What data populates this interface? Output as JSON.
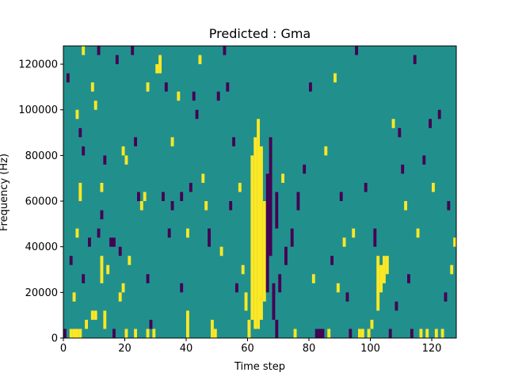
{
  "chart_data": {
    "type": "heatmap",
    "title": "Predicted : Gma",
    "xlabel": "Time step",
    "ylabel": "Frequency (Hz)",
    "xlim": [
      0,
      128
    ],
    "ylim": [
      0,
      128000
    ],
    "xticks": [
      0,
      20,
      40,
      60,
      80,
      100,
      120
    ],
    "xtick_labels": [
      "0",
      "20",
      "40",
      "60",
      "80",
      "100",
      "120"
    ],
    "yticks": [
      0,
      20000,
      40000,
      60000,
      80000,
      100000,
      120000
    ],
    "ytick_labels": [
      "0",
      "20000",
      "40000",
      "60000",
      "80000",
      "100000",
      "120000"
    ],
    "grid": false,
    "levels": {
      "background": 0,
      "low": -1,
      "high": 1
    },
    "colors": {
      "background": "#21908d",
      "low": "#440154",
      "high": "#fde725"
    },
    "cells": [
      {
        "x": 0,
        "y0": 0,
        "y1": 4000,
        "v": -1
      },
      {
        "x": 1,
        "y0": 112000,
        "y1": 116000,
        "v": -1
      },
      {
        "x": 2,
        "y0": 0,
        "y1": 4000,
        "v": 1
      },
      {
        "x": 3,
        "y0": 0,
        "y1": 4000,
        "v": 1
      },
      {
        "x": 4,
        "y0": 0,
        "y1": 4000,
        "v": 1
      },
      {
        "x": 5,
        "y0": 0,
        "y1": 4000,
        "v": 1
      },
      {
        "x": 2,
        "y0": 32000,
        "y1": 36000,
        "v": -1
      },
      {
        "x": 3,
        "y0": 16000,
        "y1": 20000,
        "v": 1
      },
      {
        "x": 4,
        "y0": 44000,
        "y1": 48000,
        "v": 1
      },
      {
        "x": 4,
        "y0": 96000,
        "y1": 100000,
        "v": 1
      },
      {
        "x": 5,
        "y0": 60000,
        "y1": 68000,
        "v": 1
      },
      {
        "x": 5,
        "y0": 88000,
        "y1": 92000,
        "v": -1
      },
      {
        "x": 6,
        "y0": 24000,
        "y1": 28000,
        "v": -1
      },
      {
        "x": 6,
        "y0": 80000,
        "y1": 84000,
        "v": -1
      },
      {
        "x": 6,
        "y0": 124000,
        "y1": 128000,
        "v": 1
      },
      {
        "x": 7,
        "y0": 4000,
        "y1": 8000,
        "v": 1
      },
      {
        "x": 8,
        "y0": 40000,
        "y1": 44000,
        "v": -1
      },
      {
        "x": 9,
        "y0": 108000,
        "y1": 112000,
        "v": 1
      },
      {
        "x": 9,
        "y0": 8000,
        "y1": 12000,
        "v": 1
      },
      {
        "x": 10,
        "y0": 8000,
        "y1": 12000,
        "v": 1
      },
      {
        "x": 10,
        "y0": 100000,
        "y1": 104000,
        "v": 1
      },
      {
        "x": 11,
        "y0": 124000,
        "y1": 128000,
        "v": -1
      },
      {
        "x": 11,
        "y0": 44000,
        "y1": 48000,
        "v": -1
      },
      {
        "x": 12,
        "y0": 24000,
        "y1": 36000,
        "v": 1
      },
      {
        "x": 12,
        "y0": 52000,
        "y1": 56000,
        "v": -1
      },
      {
        "x": 12,
        "y0": 64000,
        "y1": 68000,
        "v": 1
      },
      {
        "x": 13,
        "y0": 4000,
        "y1": 12000,
        "v": 1
      },
      {
        "x": 13,
        "y0": 76000,
        "y1": 80000,
        "v": -1
      },
      {
        "x": 14,
        "y0": 28000,
        "y1": 32000,
        "v": 1
      },
      {
        "x": 15,
        "y0": 40000,
        "y1": 44000,
        "v": -1
      },
      {
        "x": 16,
        "y0": 40000,
        "y1": 44000,
        "v": -1
      },
      {
        "x": 16,
        "y0": 0,
        "y1": 4000,
        "v": -1
      },
      {
        "x": 17,
        "y0": 120000,
        "y1": 124000,
        "v": -1
      },
      {
        "x": 18,
        "y0": 16000,
        "y1": 20000,
        "v": 1
      },
      {
        "x": 18,
        "y0": 36000,
        "y1": 40000,
        "v": -1
      },
      {
        "x": 19,
        "y0": 80000,
        "y1": 84000,
        "v": 1
      },
      {
        "x": 19,
        "y0": 20000,
        "y1": 24000,
        "v": 1
      },
      {
        "x": 20,
        "y0": 76000,
        "y1": 80000,
        "v": 1
      },
      {
        "x": 20,
        "y0": 0,
        "y1": 4000,
        "v": 1
      },
      {
        "x": 21,
        "y0": 32000,
        "y1": 36000,
        "v": 1
      },
      {
        "x": 22,
        "y0": 124000,
        "y1": 128000,
        "v": -1
      },
      {
        "x": 23,
        "y0": 84000,
        "y1": 88000,
        "v": -1
      },
      {
        "x": 23,
        "y0": 0,
        "y1": 4000,
        "v": 1
      },
      {
        "x": 24,
        "y0": 60000,
        "y1": 64000,
        "v": -1
      },
      {
        "x": 25,
        "y0": 56000,
        "y1": 60000,
        "v": 1
      },
      {
        "x": 26,
        "y0": 60000,
        "y1": 64000,
        "v": 1
      },
      {
        "x": 27,
        "y0": 24000,
        "y1": 28000,
        "v": -1
      },
      {
        "x": 27,
        "y0": 108000,
        "y1": 112000,
        "v": 1
      },
      {
        "x": 27,
        "y0": 0,
        "y1": 4000,
        "v": 1
      },
      {
        "x": 28,
        "y0": 4000,
        "y1": 8000,
        "v": -1
      },
      {
        "x": 29,
        "y0": 0,
        "y1": 4000,
        "v": 1
      },
      {
        "x": 30,
        "y0": 116000,
        "y1": 120000,
        "v": 1
      },
      {
        "x": 31,
        "y0": 116000,
        "y1": 124000,
        "v": 1
      },
      {
        "x": 32,
        "y0": 60000,
        "y1": 64000,
        "v": -1
      },
      {
        "x": 33,
        "y0": 108000,
        "y1": 112000,
        "v": -1
      },
      {
        "x": 34,
        "y0": 44000,
        "y1": 48000,
        "v": -1
      },
      {
        "x": 35,
        "y0": 84000,
        "y1": 88000,
        "v": 1
      },
      {
        "x": 35,
        "y0": 56000,
        "y1": 60000,
        "v": -1
      },
      {
        "x": 37,
        "y0": 104000,
        "y1": 108000,
        "v": 1
      },
      {
        "x": 38,
        "y0": 60000,
        "y1": 64000,
        "v": -1
      },
      {
        "x": 38,
        "y0": 20000,
        "y1": 24000,
        "v": -1
      },
      {
        "x": 40,
        "y0": 44000,
        "y1": 48000,
        "v": 1
      },
      {
        "x": 40,
        "y0": 0,
        "y1": 12000,
        "v": 1
      },
      {
        "x": 41,
        "y0": 64000,
        "y1": 68000,
        "v": -1
      },
      {
        "x": 42,
        "y0": 104000,
        "y1": 108000,
        "v": -1
      },
      {
        "x": 43,
        "y0": 96000,
        "y1": 100000,
        "v": -1
      },
      {
        "x": 44,
        "y0": 120000,
        "y1": 124000,
        "v": 1
      },
      {
        "x": 45,
        "y0": 68000,
        "y1": 72000,
        "v": 1
      },
      {
        "x": 46,
        "y0": 56000,
        "y1": 60000,
        "v": 1
      },
      {
        "x": 47,
        "y0": 40000,
        "y1": 48000,
        "v": -1
      },
      {
        "x": 48,
        "y0": 0,
        "y1": 8000,
        "v": 1
      },
      {
        "x": 49,
        "y0": 0,
        "y1": 4000,
        "v": 1
      },
      {
        "x": 50,
        "y0": 104000,
        "y1": 108000,
        "v": -1
      },
      {
        "x": 51,
        "y0": 36000,
        "y1": 40000,
        "v": 1
      },
      {
        "x": 52,
        "y0": 124000,
        "y1": 128000,
        "v": -1
      },
      {
        "x": 53,
        "y0": 108000,
        "y1": 112000,
        "v": -1
      },
      {
        "x": 54,
        "y0": 56000,
        "y1": 60000,
        "v": -1
      },
      {
        "x": 55,
        "y0": 84000,
        "y1": 88000,
        "v": -1
      },
      {
        "x": 56,
        "y0": 20000,
        "y1": 24000,
        "v": -1
      },
      {
        "x": 57,
        "y0": 64000,
        "y1": 68000,
        "v": 1
      },
      {
        "x": 58,
        "y0": 28000,
        "y1": 32000,
        "v": 1
      },
      {
        "x": 59,
        "y0": 12000,
        "y1": 20000,
        "v": 1
      },
      {
        "x": 60,
        "y0": 0,
        "y1": 8000,
        "v": 1
      },
      {
        "x": 61,
        "y0": 8000,
        "y1": 80000,
        "v": 1
      },
      {
        "x": 62,
        "y0": 4000,
        "y1": 88000,
        "v": 1
      },
      {
        "x": 63,
        "y0": 4000,
        "y1": 96000,
        "v": 1
      },
      {
        "x": 64,
        "y0": 8000,
        "y1": 84000,
        "v": 1
      },
      {
        "x": 65,
        "y0": 16000,
        "y1": 60000,
        "v": 1
      },
      {
        "x": 66,
        "y0": 20000,
        "y1": 72000,
        "v": -1
      },
      {
        "x": 67,
        "y0": 36000,
        "y1": 88000,
        "v": -1
      },
      {
        "x": 68,
        "y0": 8000,
        "y1": 24000,
        "v": -1
      },
      {
        "x": 69,
        "y0": 0,
        "y1": 8000,
        "v": -1
      },
      {
        "x": 69,
        "y0": 48000,
        "y1": 64000,
        "v": -1
      },
      {
        "x": 70,
        "y0": 20000,
        "y1": 28000,
        "v": -1
      },
      {
        "x": 71,
        "y0": 68000,
        "y1": 72000,
        "v": 1
      },
      {
        "x": 72,
        "y0": 32000,
        "y1": 40000,
        "v": -1
      },
      {
        "x": 74,
        "y0": 40000,
        "y1": 48000,
        "v": -1
      },
      {
        "x": 75,
        "y0": 0,
        "y1": 4000,
        "v": 1
      },
      {
        "x": 76,
        "y0": 56000,
        "y1": 64000,
        "v": -1
      },
      {
        "x": 78,
        "y0": 72000,
        "y1": 76000,
        "v": -1
      },
      {
        "x": 80,
        "y0": 108000,
        "y1": 112000,
        "v": -1
      },
      {
        "x": 81,
        "y0": 24000,
        "y1": 28000,
        "v": 1
      },
      {
        "x": 82,
        "y0": 0,
        "y1": 4000,
        "v": -1
      },
      {
        "x": 83,
        "y0": 0,
        "y1": 4000,
        "v": -1
      },
      {
        "x": 84,
        "y0": 0,
        "y1": 4000,
        "v": -1
      },
      {
        "x": 85,
        "y0": 80000,
        "y1": 84000,
        "v": 1
      },
      {
        "x": 86,
        "y0": 0,
        "y1": 4000,
        "v": 1
      },
      {
        "x": 87,
        "y0": 32000,
        "y1": 36000,
        "v": -1
      },
      {
        "x": 88,
        "y0": 112000,
        "y1": 116000,
        "v": 1
      },
      {
        "x": 89,
        "y0": 20000,
        "y1": 24000,
        "v": 1
      },
      {
        "x": 90,
        "y0": 60000,
        "y1": 64000,
        "v": -1
      },
      {
        "x": 91,
        "y0": 40000,
        "y1": 44000,
        "v": 1
      },
      {
        "x": 92,
        "y0": 16000,
        "y1": 20000,
        "v": -1
      },
      {
        "x": 93,
        "y0": 0,
        "y1": 4000,
        "v": -1
      },
      {
        "x": 94,
        "y0": 44000,
        "y1": 48000,
        "v": 1
      },
      {
        "x": 95,
        "y0": 124000,
        "y1": 128000,
        "v": -1
      },
      {
        "x": 96,
        "y0": 0,
        "y1": 4000,
        "v": 1
      },
      {
        "x": 97,
        "y0": 0,
        "y1": 4000,
        "v": 1
      },
      {
        "x": 98,
        "y0": 64000,
        "y1": 68000,
        "v": -1
      },
      {
        "x": 99,
        "y0": 0,
        "y1": 4000,
        "v": 1
      },
      {
        "x": 100,
        "y0": 4000,
        "y1": 8000,
        "v": 1
      },
      {
        "x": 101,
        "y0": 40000,
        "y1": 48000,
        "v": -1
      },
      {
        "x": 102,
        "y0": 12000,
        "y1": 36000,
        "v": 1
      },
      {
        "x": 103,
        "y0": 20000,
        "y1": 32000,
        "v": 1
      },
      {
        "x": 104,
        "y0": 24000,
        "y1": 36000,
        "v": 1
      },
      {
        "x": 105,
        "y0": 28000,
        "y1": 36000,
        "v": 1
      },
      {
        "x": 106,
        "y0": 0,
        "y1": 4000,
        "v": -1
      },
      {
        "x": 107,
        "y0": 92000,
        "y1": 96000,
        "v": 1
      },
      {
        "x": 108,
        "y0": 12000,
        "y1": 16000,
        "v": -1
      },
      {
        "x": 109,
        "y0": 88000,
        "y1": 92000,
        "v": -1
      },
      {
        "x": 110,
        "y0": 72000,
        "y1": 76000,
        "v": -1
      },
      {
        "x": 111,
        "y0": 56000,
        "y1": 60000,
        "v": 1
      },
      {
        "x": 112,
        "y0": 24000,
        "y1": 28000,
        "v": -1
      },
      {
        "x": 113,
        "y0": 0,
        "y1": 4000,
        "v": -1
      },
      {
        "x": 114,
        "y0": 120000,
        "y1": 124000,
        "v": -1
      },
      {
        "x": 115,
        "y0": 44000,
        "y1": 48000,
        "v": 1
      },
      {
        "x": 116,
        "y0": 0,
        "y1": 4000,
        "v": 1
      },
      {
        "x": 117,
        "y0": 76000,
        "y1": 80000,
        "v": -1
      },
      {
        "x": 118,
        "y0": 0,
        "y1": 4000,
        "v": 1
      },
      {
        "x": 119,
        "y0": 92000,
        "y1": 96000,
        "v": -1
      },
      {
        "x": 120,
        "y0": 64000,
        "y1": 68000,
        "v": 1
      },
      {
        "x": 121,
        "y0": 0,
        "y1": 4000,
        "v": 1
      },
      {
        "x": 122,
        "y0": 96000,
        "y1": 100000,
        "v": -1
      },
      {
        "x": 123,
        "y0": 0,
        "y1": 4000,
        "v": 1
      },
      {
        "x": 124,
        "y0": 16000,
        "y1": 20000,
        "v": -1
      },
      {
        "x": 125,
        "y0": 56000,
        "y1": 60000,
        "v": -1
      },
      {
        "x": 126,
        "y0": 28000,
        "y1": 32000,
        "v": 1
      },
      {
        "x": 127,
        "y0": 40000,
        "y1": 44000,
        "v": 1
      }
    ]
  }
}
